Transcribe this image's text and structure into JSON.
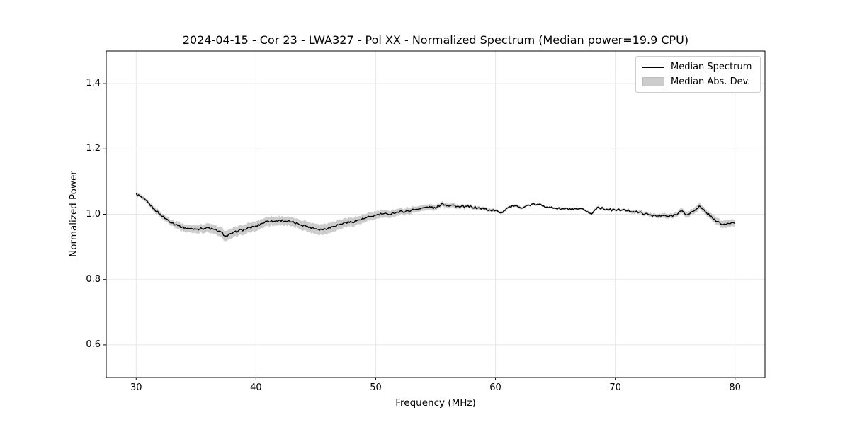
{
  "chart_data": {
    "type": "line",
    "title": "2024-04-15 - Cor 23 - LWA327 - Pol XX - Normalized Spectrum (Median power=19.9 CPU)",
    "xlabel": "Frequency (MHz)",
    "ylabel": "Normalized Power",
    "xlim": [
      27.5,
      82.5
    ],
    "ylim": [
      0.5,
      1.5
    ],
    "xticks": [
      30,
      40,
      50,
      60,
      70,
      80
    ],
    "yticks": [
      0.6,
      0.8,
      1.0,
      1.2,
      1.4
    ],
    "grid": true,
    "grid_color": "#e7e7e7",
    "line_color": "#000000",
    "band_color": "#cccccc",
    "noise_amplitude": 0.0035,
    "legend": {
      "position": "upper right",
      "entries": [
        {
          "label": "Median Spectrum",
          "type": "line",
          "color": "#000000"
        },
        {
          "label": "Median Abs. Dev.",
          "type": "patch",
          "color": "#cccccc"
        }
      ]
    },
    "series": [
      {
        "name": "Median Spectrum",
        "x_start": 30.0,
        "x_step": 0.5,
        "values": [
          1.063,
          1.05,
          1.035,
          1.016,
          1.0,
          0.986,
          0.974,
          0.965,
          0.958,
          0.956,
          0.955,
          0.956,
          0.958,
          0.953,
          0.947,
          0.933,
          0.94,
          0.949,
          0.953,
          0.959,
          0.964,
          0.972,
          0.98,
          0.978,
          0.982,
          0.979,
          0.976,
          0.971,
          0.966,
          0.961,
          0.956,
          0.953,
          0.957,
          0.964,
          0.969,
          0.975,
          0.976,
          0.982,
          0.986,
          0.992,
          0.997,
          1.001,
          1.0,
          1.004,
          1.008,
          1.009,
          1.013,
          1.016,
          1.02,
          1.023,
          1.018,
          1.033,
          1.027,
          1.028,
          1.022,
          1.024,
          1.023,
          1.019,
          1.017,
          1.013,
          1.011,
          1.005,
          1.02,
          1.025,
          1.021,
          1.024,
          1.03,
          1.03,
          1.027,
          1.021,
          1.019,
          1.016,
          1.017,
          1.014,
          1.016,
          1.012,
          1.0,
          1.022,
          1.017,
          1.014,
          1.013,
          1.013,
          1.011,
          1.009,
          1.006,
          1.001,
          0.998,
          0.994,
          0.996,
          0.993,
          0.999,
          1.01,
          0.998,
          1.009,
          1.025,
          1.008,
          0.994,
          0.977,
          0.968,
          0.972,
          0.972
        ]
      },
      {
        "name": "Median Abs. Dev.",
        "x_start": 30.0,
        "x_step": 0.5,
        "mad_halfwidth": [
          0.006,
          0.006,
          0.006,
          0.008,
          0.008,
          0.008,
          0.009,
          0.011,
          0.012,
          0.012,
          0.012,
          0.013,
          0.014,
          0.014,
          0.015,
          0.016,
          0.015,
          0.015,
          0.015,
          0.015,
          0.015,
          0.014,
          0.014,
          0.014,
          0.013,
          0.013,
          0.014,
          0.014,
          0.015,
          0.015,
          0.016,
          0.016,
          0.016,
          0.015,
          0.015,
          0.014,
          0.014,
          0.013,
          0.013,
          0.012,
          0.012,
          0.012,
          0.011,
          0.011,
          0.01,
          0.01,
          0.01,
          0.009,
          0.009,
          0.009,
          0.008,
          0.007,
          0.007,
          0.007,
          0.006,
          0.006,
          0.006,
          0.005,
          0.005,
          0.005,
          0.005,
          0.004,
          0.004,
          0.004,
          0.004,
          0.003,
          0.003,
          0.003,
          0.003,
          0.003,
          0.003,
          0.003,
          0.003,
          0.003,
          0.003,
          0.004,
          0.004,
          0.004,
          0.004,
          0.004,
          0.004,
          0.004,
          0.005,
          0.005,
          0.005,
          0.005,
          0.006,
          0.006,
          0.007,
          0.007,
          0.007,
          0.008,
          0.009,
          0.009,
          0.01,
          0.009,
          0.01,
          0.011,
          0.011,
          0.011,
          0.011
        ]
      }
    ]
  }
}
